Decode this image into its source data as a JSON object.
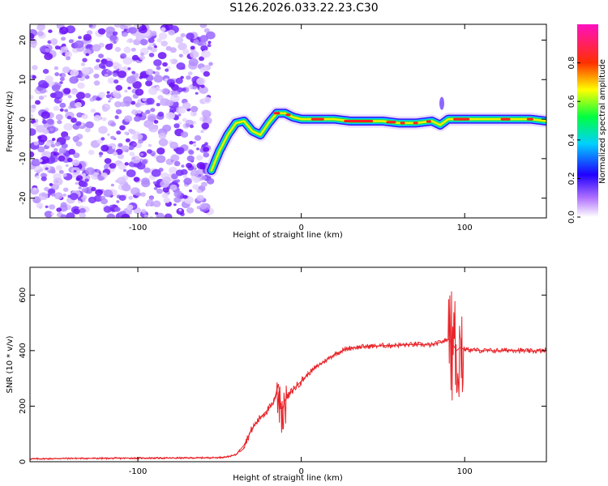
{
  "title": "S126.2026.033.22.23.C30",
  "chart_data": [
    {
      "type": "heatmap",
      "xlabel": "Height of straight line (km)",
      "ylabel": "Frequency (Hz)",
      "xlim": [
        -166,
        150
      ],
      "ylim": [
        -25,
        24
      ],
      "xticks": [
        -100,
        0,
        100
      ],
      "yticks": [
        -20,
        -10,
        0,
        10,
        20
      ],
      "colorbar": {
        "label": "Normalized spectral amplitude",
        "range": [
          0,
          1
        ],
        "ticks": [
          "0.0",
          "0.2",
          "0.4",
          "0.6",
          "0.8"
        ],
        "colors": [
          "#ffffff",
          "#7f00ff",
          "#0000ff",
          "#00ffff",
          "#00ff00",
          "#ffff00",
          "#ff0000",
          "#ff00ff"
        ]
      },
      "noise_region_x": [
        -166,
        -55
      ],
      "ridge": {
        "x": [
          -55,
          -50,
          -45,
          -40,
          -35,
          -30,
          -25,
          -20,
          -15,
          -10,
          -5,
          0,
          10,
          20,
          30,
          40,
          50,
          60,
          70,
          80,
          85,
          90,
          100,
          110,
          120,
          130,
          140,
          150
        ],
        "freq": [
          -13,
          -8,
          -4,
          -1,
          -0.5,
          -3,
          -4,
          -1,
          1.5,
          1.5,
          0.5,
          0,
          0,
          0,
          -0.5,
          -0.5,
          -0.5,
          -1,
          -1,
          -0.5,
          -1.5,
          0,
          0,
          0,
          0,
          0,
          0,
          -0.5
        ]
      }
    },
    {
      "type": "line",
      "xlabel": "Height of straight line (km)",
      "ylabel": "SNR (10 * v/v)",
      "xlim": [
        -166,
        150
      ],
      "ylim": [
        0,
        700
      ],
      "xticks": [
        -100,
        0,
        100
      ],
      "yticks": [
        0,
        200,
        400,
        600
      ],
      "color": "#e8252a",
      "x": [
        -166,
        -140,
        -120,
        -100,
        -80,
        -60,
        -50,
        -45,
        -40,
        -35,
        -30,
        -25,
        -20,
        -17,
        -14,
        -12,
        -10,
        -5,
        0,
        5,
        10,
        15,
        20,
        25,
        30,
        40,
        50,
        60,
        70,
        80,
        85,
        90,
        93,
        95,
        97,
        100,
        110,
        120,
        130,
        140,
        150
      ],
      "y": [
        10,
        12,
        12,
        13,
        13,
        14,
        15,
        18,
        25,
        60,
        120,
        160,
        190,
        210,
        280,
        180,
        220,
        260,
        290,
        320,
        345,
        365,
        385,
        400,
        410,
        415,
        418,
        420,
        422,
        420,
        430,
        440,
        420,
        400,
        410,
        405,
        400,
        400,
        402,
        398,
        400
      ]
    }
  ]
}
